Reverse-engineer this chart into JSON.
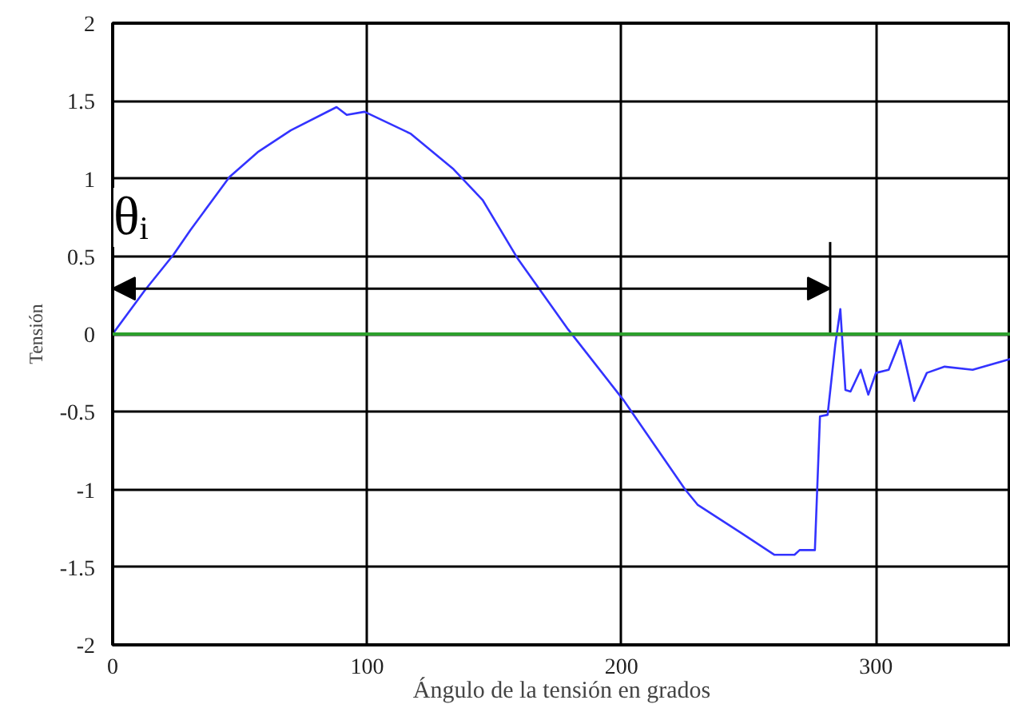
{
  "chart_data": {
    "type": "line",
    "xlabel": "Ángulo de la tensión en grados",
    "ylabel": "Tensión",
    "x": [
      0,
      12.6,
      23.9,
      30.6,
      45.9,
      57,
      70,
      88,
      92,
      99,
      117,
      134,
      145.5,
      159,
      179,
      201,
      225,
      230,
      247,
      260,
      268,
      270,
      276,
      278,
      281,
      284,
      286,
      288,
      290,
      294,
      297,
      300,
      305,
      309.6,
      315,
      320,
      327,
      338,
      353
    ],
    "series": [
      {
        "color": "#3333ff",
        "values": [
          0,
          0.28,
          0.51,
          0.67,
          1.01,
          1.17,
          1.31,
          1.46,
          1.41,
          1.43,
          1.29,
          1.06,
          0.86,
          0.49,
          0.03,
          -0.43,
          -1.0,
          -1.1,
          -1.28,
          -1.42,
          -1.42,
          -1.39,
          -1.39,
          -0.53,
          -0.52,
          -0.07,
          0.16,
          -0.36,
          -0.37,
          -0.23,
          -0.39,
          -0.25,
          -0.23,
          -0.04,
          -0.43,
          -0.25,
          -0.21,
          -0.23,
          -0.16
        ]
      }
    ],
    "xlim": [
      0,
      353
    ],
    "xticks": [
      0,
      100,
      200,
      300
    ],
    "ylim": [
      -2,
      2
    ],
    "yticks": [
      -2,
      -1.5,
      -1,
      -0.5,
      0,
      0.5,
      1,
      1.5,
      2
    ],
    "ref_lines": [
      {
        "axis": "y",
        "value": 0,
        "label": null,
        "color": "#2ca02c"
      },
      {
        "axis": "x",
        "value": 282,
        "label": null,
        "color": "#000000"
      }
    ],
    "annotations": [
      "θᵢ"
    ],
    "grid": true,
    "line_style": "solid",
    "marker": "none"
  }
}
